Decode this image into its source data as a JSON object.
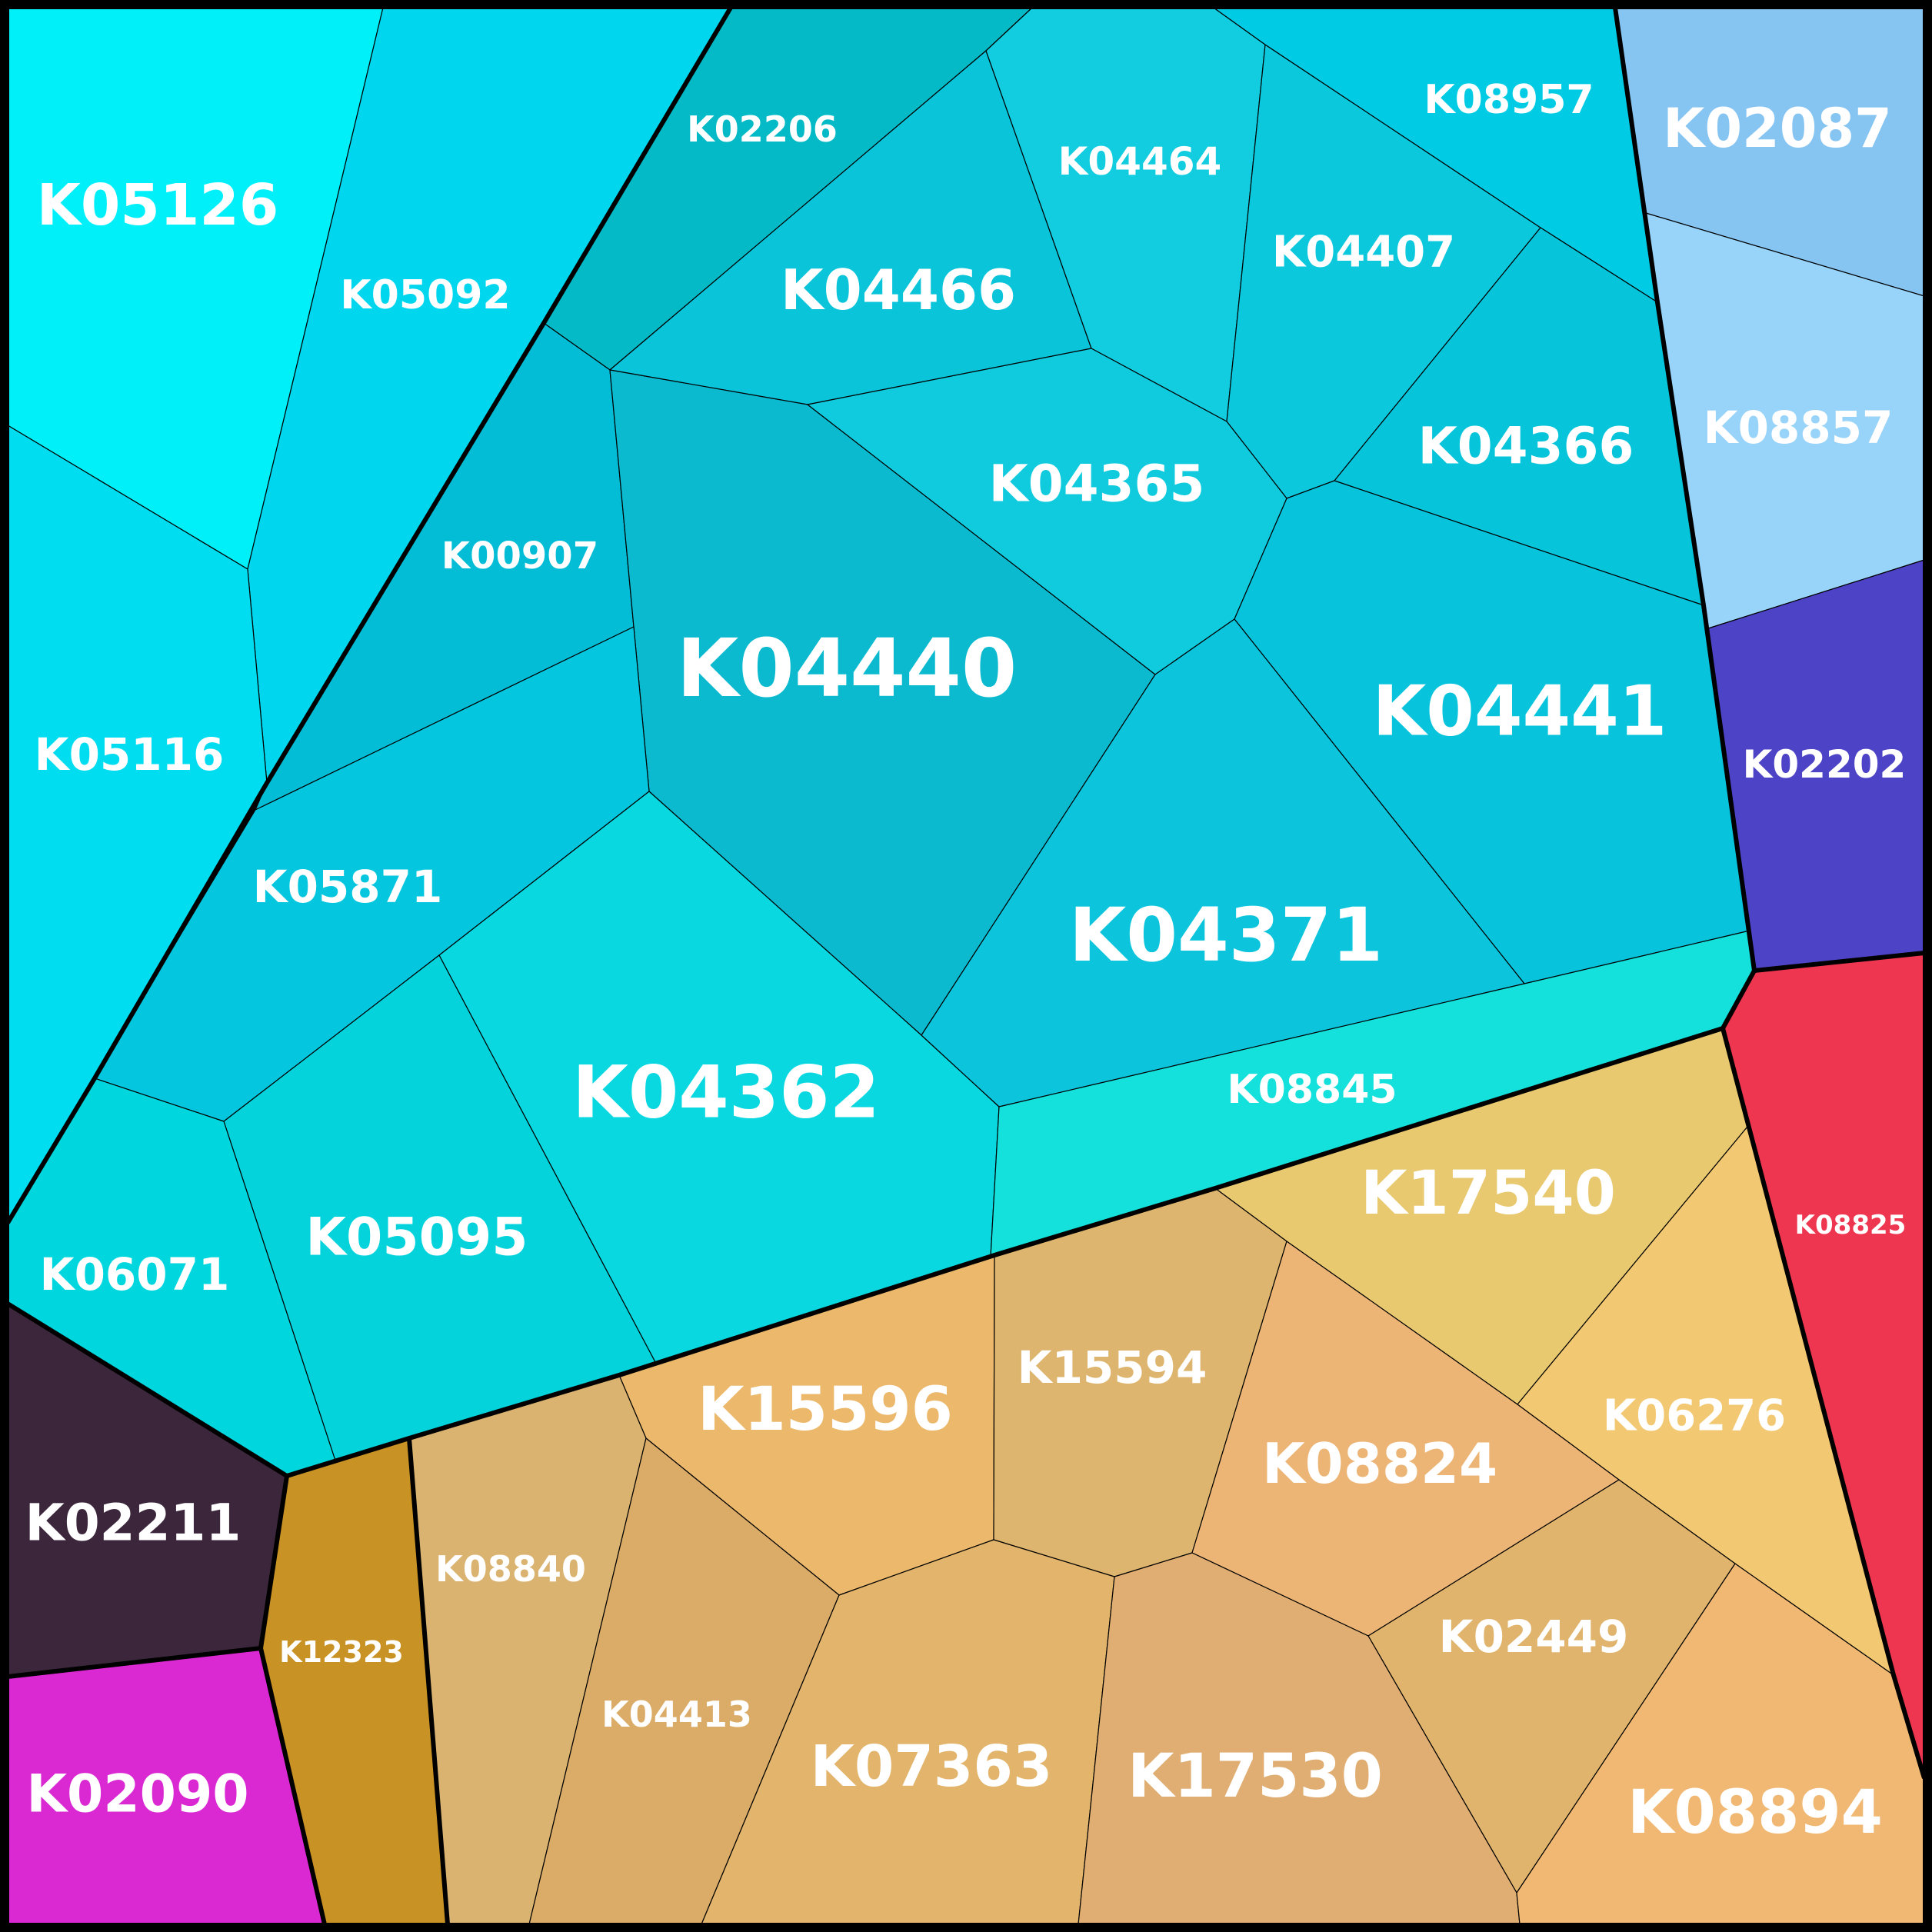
{
  "colors": {
    "background": "#000000",
    "label_text": "#ffffff",
    "border": "#000000"
  },
  "cells": [
    {
      "id": "K05126",
      "label": "K05126",
      "color": "#00f0fa"
    },
    {
      "id": "K05092",
      "label": "K05092",
      "color": "#00d7ee"
    },
    {
      "id": "K05116",
      "label": "K05116",
      "color": "#00dcf0"
    },
    {
      "id": "K02206",
      "label": "K02206",
      "color": "#04bac6"
    },
    {
      "id": "K04466",
      "label": "K04466",
      "color": "#0ac4da"
    },
    {
      "id": "K04464",
      "label": "K04464",
      "color": "#12cde0"
    },
    {
      "id": "K04407",
      "label": "K04407",
      "color": "#0bc8dd"
    },
    {
      "id": "K08957",
      "label": "K08957",
      "color": "#00cbe4"
    },
    {
      "id": "K00907",
      "label": "K00907",
      "color": "#03bdd6"
    },
    {
      "id": "K04440",
      "label": "K04440",
      "color": "#0cbad0"
    },
    {
      "id": "K04365",
      "label": "K04365",
      "color": "#10cbde"
    },
    {
      "id": "K04366",
      "label": "K04366",
      "color": "#06c4da"
    },
    {
      "id": "K04441",
      "label": "K04441",
      "color": "#07c3dc"
    },
    {
      "id": "K05871",
      "label": "K05871",
      "color": "#04c6de"
    },
    {
      "id": "K04362",
      "label": "K04362",
      "color": "#0ad8e0"
    },
    {
      "id": "K04371",
      "label": "K04371",
      "color": "#0cc5dc"
    },
    {
      "id": "K08845",
      "label": "K08845",
      "color": "#14e0dc"
    },
    {
      "id": "K05095",
      "label": "K05095",
      "color": "#04d3dc"
    },
    {
      "id": "K06071",
      "label": "K06071",
      "color": "#00d6de"
    },
    {
      "id": "K02087",
      "label": "K02087",
      "color": "#86c4f2"
    },
    {
      "id": "K08857",
      "label": "K08857",
      "color": "#98d3fa"
    },
    {
      "id": "K02202",
      "label": "K02202",
      "color": "#4d43c6"
    },
    {
      "id": "K08825",
      "label": "K08825",
      "color": "#ee3651"
    },
    {
      "id": "K17540",
      "label": "K17540",
      "color": "#e9c970"
    },
    {
      "id": "K06276",
      "label": "K06276",
      "color": "#f3c872"
    },
    {
      "id": "K15596",
      "label": "K15596",
      "color": "#ebb86c"
    },
    {
      "id": "K15594",
      "label": "K15594",
      "color": "#deb56e"
    },
    {
      "id": "K08824",
      "label": "K08824",
      "color": "#ecb576"
    },
    {
      "id": "K02449",
      "label": "K02449",
      "color": "#e0b46c"
    },
    {
      "id": "K08840",
      "label": "K08840",
      "color": "#dab370"
    },
    {
      "id": "K04413",
      "label": "K04413",
      "color": "#dbab68"
    },
    {
      "id": "K07363",
      "label": "K07363",
      "color": "#e2b46c"
    },
    {
      "id": "K17530",
      "label": "K17530",
      "color": "#e0ae72"
    },
    {
      "id": "K08894",
      "label": "K08894",
      "color": "#f0b872"
    },
    {
      "id": "K12323",
      "label": "K12323",
      "color": "#c99224"
    },
    {
      "id": "K02211",
      "label": "K02211",
      "color": "#3b263b"
    },
    {
      "id": "K02090",
      "label": "K02090",
      "color": "#da28d2"
    }
  ]
}
